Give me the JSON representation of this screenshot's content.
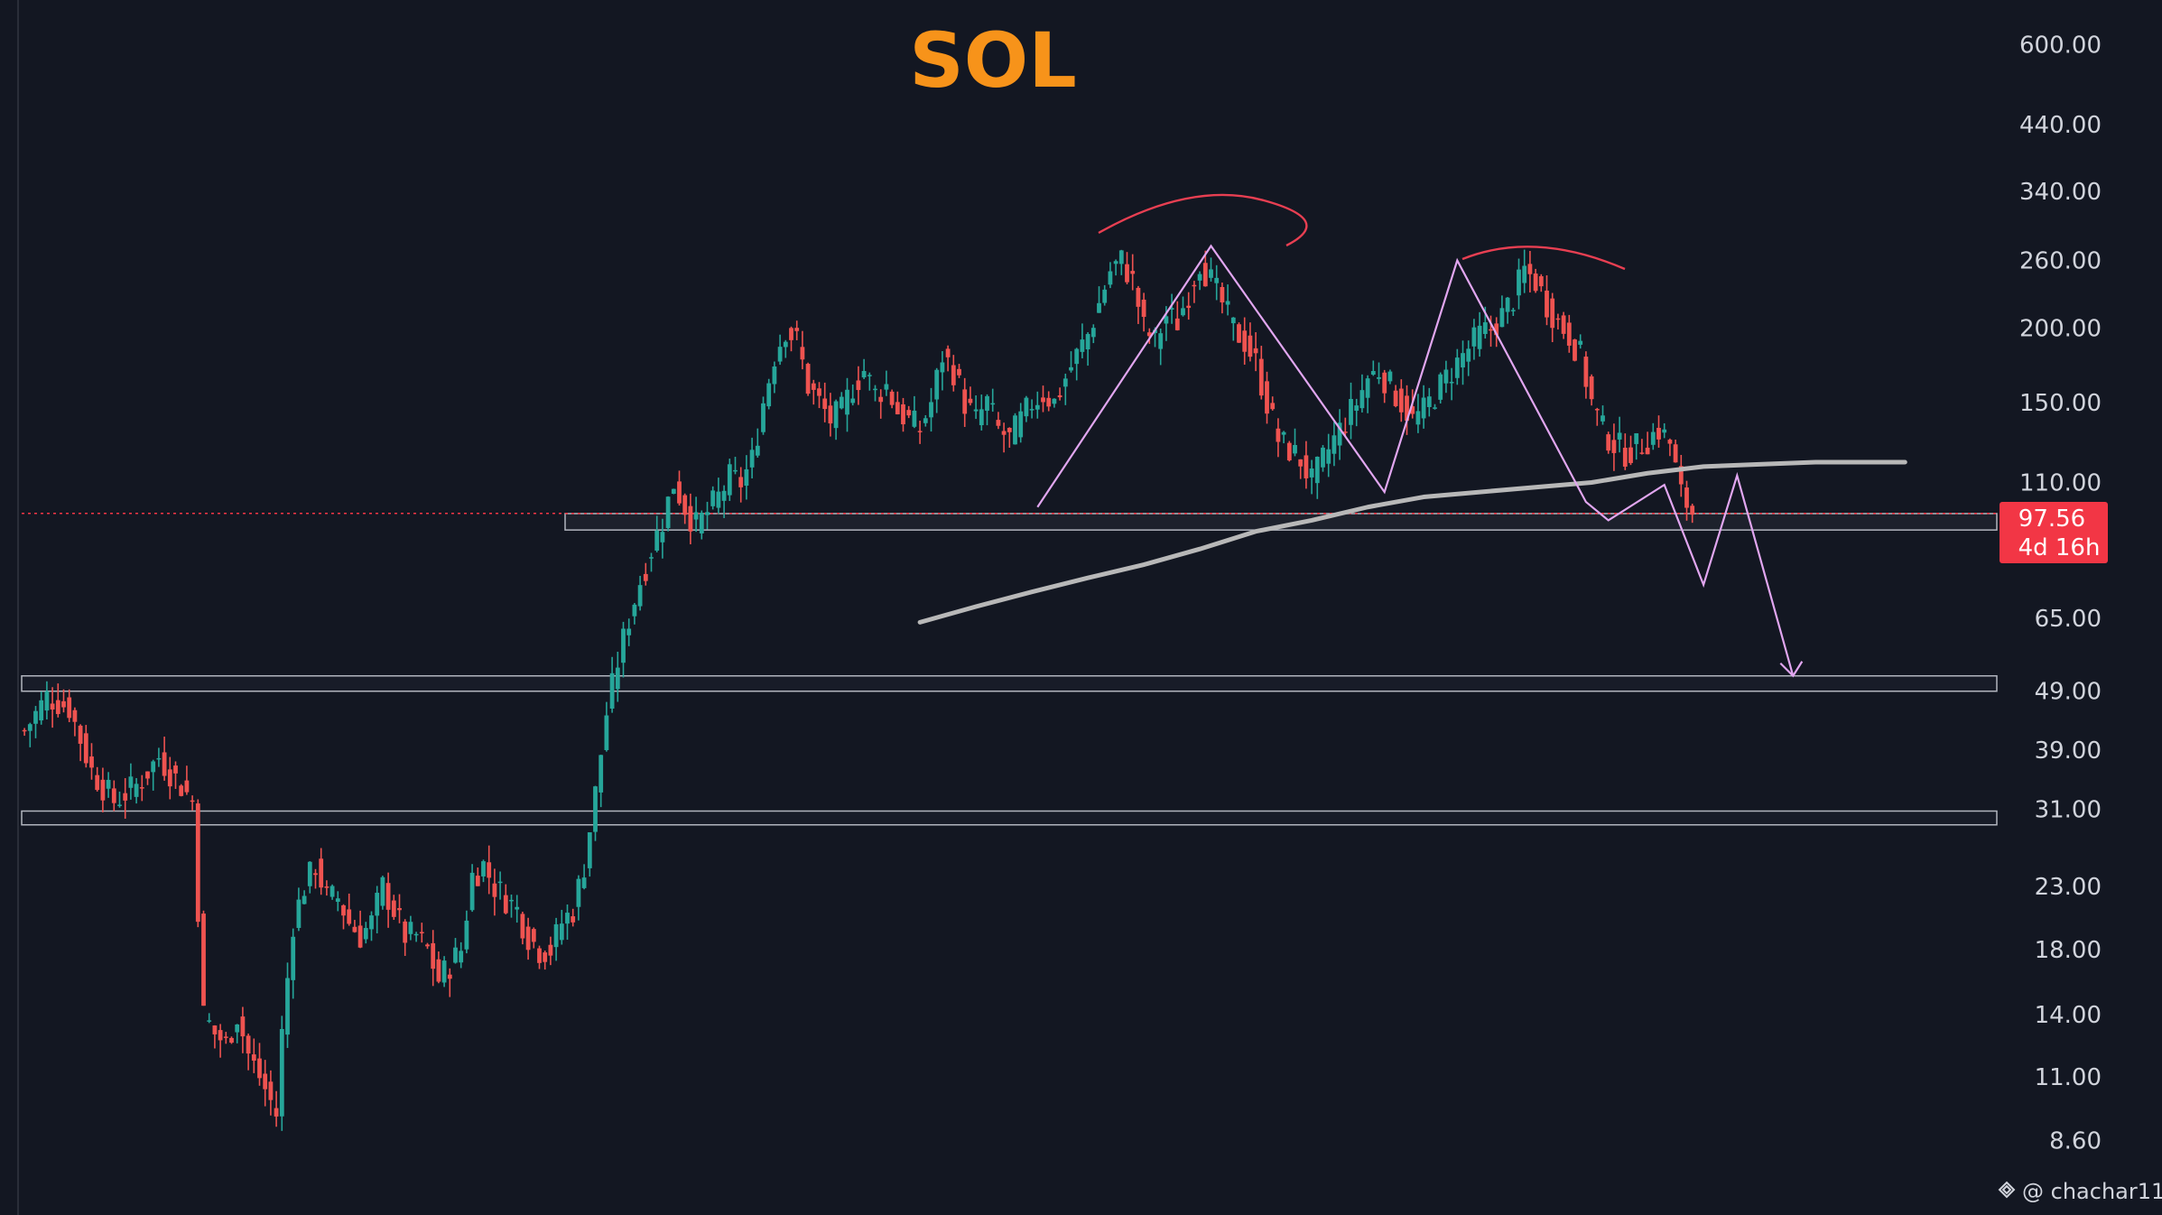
{
  "chart_data": {
    "type": "candlestick",
    "title": "SOL",
    "yscale": "log",
    "ylim": [
      8.0,
      620
    ],
    "ticks": [
      "600.00",
      "440.00",
      "340.00",
      "260.00",
      "200.00",
      "150.00",
      "110.00",
      "65.00",
      "49.00",
      "39.00",
      "31.00",
      "23.00",
      "18.00",
      "14.00",
      "11.00",
      "8.60"
    ],
    "tick_values": [
      600,
      440,
      340,
      260,
      200,
      150,
      110,
      65,
      49,
      39,
      31,
      23,
      18,
      14,
      11,
      8.6
    ],
    "last_price": "97.56",
    "countdown": "4d 16h",
    "zones": [
      [
        91.5,
        97.5
      ],
      [
        49.0,
        52.0
      ],
      [
        29.2,
        30.8
      ]
    ],
    "ma_points": [
      [
        160,
        64
      ],
      [
        170,
        68
      ],
      [
        180,
        72
      ],
      [
        190,
        76
      ],
      [
        200,
        80
      ],
      [
        210,
        85
      ],
      [
        220,
        91
      ],
      [
        230,
        95
      ],
      [
        240,
        100
      ],
      [
        250,
        104
      ],
      [
        260,
        106
      ],
      [
        270,
        108
      ],
      [
        280,
        110
      ],
      [
        290,
        114
      ],
      [
        300,
        117
      ],
      [
        310,
        118
      ],
      [
        320,
        119
      ],
      [
        330,
        119
      ],
      [
        336,
        119
      ]
    ],
    "pattern_points": [
      [
        181,
        100
      ],
      [
        212,
        275
      ],
      [
        243,
        106
      ],
      [
        256,
        260
      ],
      [
        279,
        102
      ],
      [
        283,
        95
      ],
      [
        293,
        109
      ],
      [
        300,
        74
      ],
      [
        306,
        113
      ],
      [
        316,
        52
      ]
    ],
    "price_path": [
      [
        0,
        42
      ],
      [
        4,
        48
      ],
      [
        8,
        46
      ],
      [
        12,
        36
      ],
      [
        16,
        32
      ],
      [
        20,
        34
      ],
      [
        24,
        38
      ],
      [
        28,
        34
      ],
      [
        30,
        32
      ],
      [
        32,
        14
      ],
      [
        34,
        13
      ],
      [
        36,
        12.5
      ],
      [
        38,
        14
      ],
      [
        40,
        12
      ],
      [
        42,
        11
      ],
      [
        44,
        10
      ],
      [
        45,
        9.5
      ],
      [
        46,
        13
      ],
      [
        48,
        20
      ],
      [
        50,
        23
      ],
      [
        52,
        25
      ],
      [
        54,
        22
      ],
      [
        56,
        22
      ],
      [
        58,
        20
      ],
      [
        60,
        19
      ],
      [
        62,
        20
      ],
      [
        64,
        23
      ],
      [
        66,
        21
      ],
      [
        68,
        19
      ],
      [
        70,
        19
      ],
      [
        72,
        18
      ],
      [
        74,
        16
      ],
      [
        76,
        17
      ],
      [
        78,
        18
      ],
      [
        80,
        24
      ],
      [
        82,
        25
      ],
      [
        84,
        23
      ],
      [
        86,
        22
      ],
      [
        88,
        21
      ],
      [
        90,
        19
      ],
      [
        92,
        18
      ],
      [
        94,
        18
      ],
      [
        96,
        20
      ],
      [
        98,
        21
      ],
      [
        100,
        25
      ],
      [
        102,
        33
      ],
      [
        104,
        45
      ],
      [
        106,
        55
      ],
      [
        108,
        65
      ],
      [
        110,
        75
      ],
      [
        112,
        85
      ],
      [
        114,
        95
      ],
      [
        116,
        110
      ],
      [
        118,
        100
      ],
      [
        120,
        93
      ],
      [
        122,
        98
      ],
      [
        124,
        104
      ],
      [
        126,
        112
      ],
      [
        128,
        110
      ],
      [
        130,
        120
      ],
      [
        132,
        150
      ],
      [
        134,
        180
      ],
      [
        136,
        200
      ],
      [
        138,
        190
      ],
      [
        140,
        160
      ],
      [
        142,
        150
      ],
      [
        144,
        140
      ],
      [
        146,
        145
      ],
      [
        148,
        160
      ],
      [
        150,
        170
      ],
      [
        152,
        155
      ],
      [
        154,
        160
      ],
      [
        156,
        145
      ],
      [
        158,
        140
      ],
      [
        160,
        135
      ],
      [
        162,
        150
      ],
      [
        164,
        180
      ],
      [
        166,
        170
      ],
      [
        168,
        150
      ],
      [
        170,
        140
      ],
      [
        172,
        150
      ],
      [
        174,
        135
      ],
      [
        176,
        130
      ],
      [
        178,
        140
      ],
      [
        180,
        150
      ],
      [
        182,
        155
      ],
      [
        184,
        150
      ],
      [
        186,
        165
      ],
      [
        188,
        180
      ],
      [
        190,
        195
      ],
      [
        192,
        220
      ],
      [
        194,
        250
      ],
      [
        196,
        260
      ],
      [
        198,
        240
      ],
      [
        200,
        200
      ],
      [
        202,
        190
      ],
      [
        204,
        210
      ],
      [
        206,
        205
      ],
      [
        208,
        230
      ],
      [
        210,
        260
      ],
      [
        212,
        240
      ],
      [
        214,
        220
      ],
      [
        216,
        200
      ],
      [
        218,
        190
      ],
      [
        220,
        175
      ],
      [
        222,
        150
      ],
      [
        224,
        130
      ],
      [
        226,
        125
      ],
      [
        228,
        120
      ],
      [
        230,
        110
      ],
      [
        232,
        120
      ],
      [
        234,
        130
      ],
      [
        236,
        140
      ],
      [
        238,
        150
      ],
      [
        240,
        165
      ],
      [
        242,
        170
      ],
      [
        244,
        160
      ],
      [
        246,
        150
      ],
      [
        248,
        140
      ],
      [
        250,
        145
      ],
      [
        252,
        155
      ],
      [
        254,
        165
      ],
      [
        256,
        175
      ],
      [
        258,
        185
      ],
      [
        260,
        195
      ],
      [
        262,
        200
      ],
      [
        264,
        210
      ],
      [
        266,
        225
      ],
      [
        268,
        250
      ],
      [
        270,
        240
      ],
      [
        272,
        220
      ],
      [
        274,
        205
      ],
      [
        276,
        195
      ],
      [
        278,
        180
      ],
      [
        280,
        150
      ],
      [
        282,
        135
      ],
      [
        284,
        128
      ],
      [
        286,
        124
      ],
      [
        288,
        126
      ],
      [
        290,
        130
      ],
      [
        292,
        135
      ],
      [
        294,
        128
      ],
      [
        296,
        105
      ],
      [
        298,
        98
      ]
    ]
  },
  "watermark": "@ chachar11"
}
